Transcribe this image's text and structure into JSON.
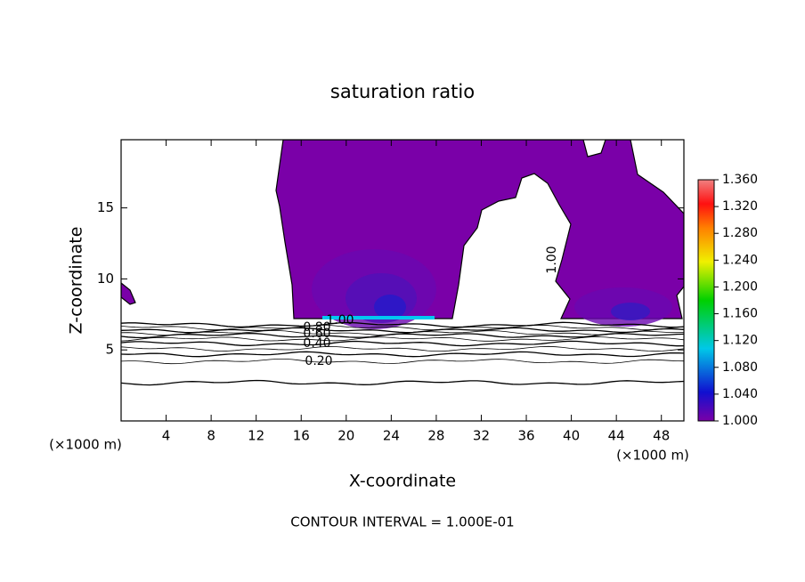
{
  "chart_data": {
    "type": "contour",
    "title": "saturation ratio",
    "x_label": "X-coordinate",
    "y_label": "Z-coordinate",
    "unit_label": "(×1000 m)",
    "footer": "CONTOUR INTERVAL = 1.000E-01",
    "xlim": [
      0,
      50
    ],
    "xticks": [
      4,
      8,
      12,
      16,
      20,
      24,
      28,
      32,
      36,
      40,
      44,
      48
    ],
    "ylim": [
      0,
      19.8
    ],
    "yticks": [
      5,
      10,
      15
    ],
    "contour_labels": [
      "0.20",
      "0.40",
      "0.60",
      "0.80",
      "1.00"
    ],
    "colorbar": {
      "lim": [
        1.0,
        1.36
      ],
      "ticks": [
        {
          "value": 1.0,
          "label": "1.000"
        },
        {
          "value": 1.04,
          "label": "1.040"
        },
        {
          "value": 1.08,
          "label": "1.080"
        },
        {
          "value": 1.12,
          "label": "1.120"
        },
        {
          "value": 1.16,
          "label": "1.160"
        },
        {
          "value": 1.2,
          "label": "1.200"
        },
        {
          "value": 1.24,
          "label": "1.240"
        },
        {
          "value": 1.28,
          "label": "1.280"
        },
        {
          "value": 1.32,
          "label": "1.320"
        },
        {
          "value": 1.36,
          "label": "1.360"
        }
      ]
    }
  }
}
